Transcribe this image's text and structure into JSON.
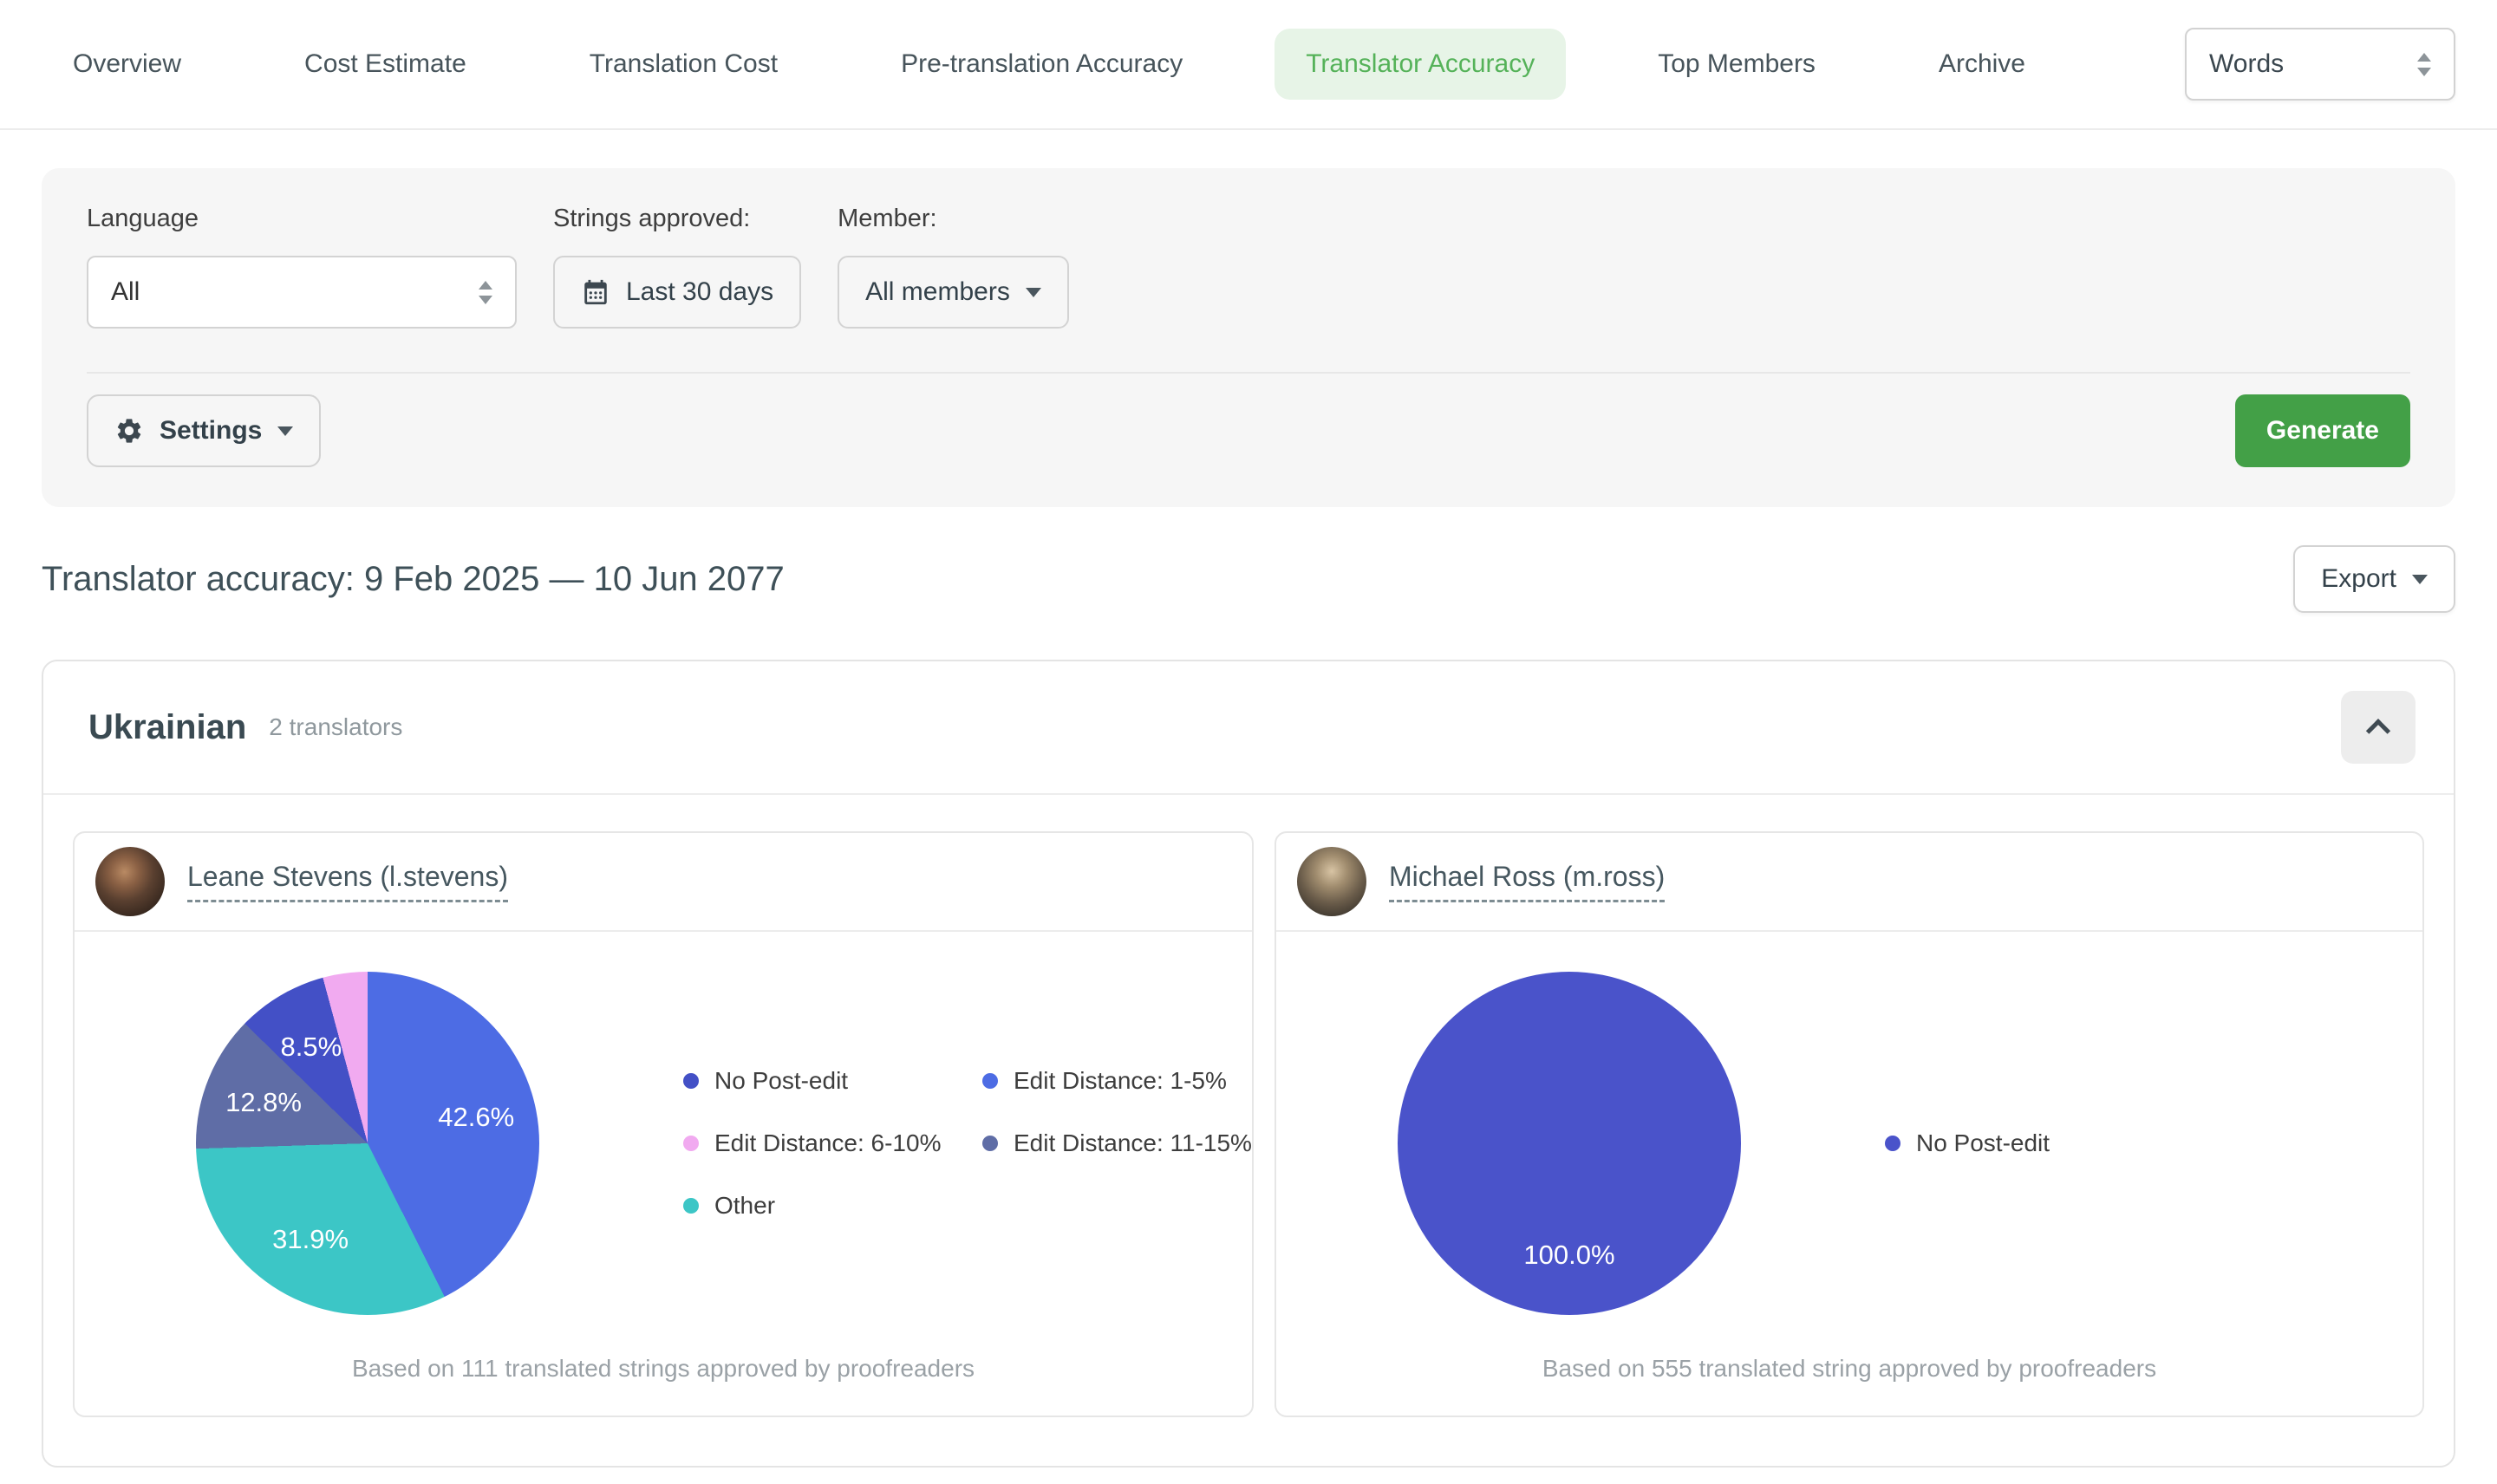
{
  "nav": {
    "tabs": [
      {
        "label": "Overview",
        "active": false
      },
      {
        "label": "Cost Estimate",
        "active": false
      },
      {
        "label": "Translation Cost",
        "active": false
      },
      {
        "label": "Pre-translation Accuracy",
        "active": false
      },
      {
        "label": "Translator Accuracy",
        "active": true
      },
      {
        "label": "Top Members",
        "active": false
      },
      {
        "label": "Archive",
        "active": false
      }
    ],
    "unit_select": {
      "value": "Words"
    }
  },
  "filters": {
    "language": {
      "label": "Language",
      "value": "All"
    },
    "strings_approved": {
      "label": "Strings approved:",
      "value": "Last 30 days"
    },
    "member": {
      "label": "Member:",
      "value": "All members"
    },
    "settings_label": "Settings",
    "generate_label": "Generate"
  },
  "report": {
    "title": "Translator accuracy: 9 Feb 2025 — 10 Jun 2077",
    "export_label": "Export"
  },
  "section": {
    "language": "Ukrainian",
    "translators_count": "2 translators"
  },
  "colors": {
    "accent_green": "#43a047",
    "active_tab_bg": "#e7f4e7",
    "active_tab_text": "#55b259"
  },
  "chart_data": [
    {
      "type": "pie",
      "title": "Leane Stevens (l.stevens)",
      "caption": "Based on 111 translated strings approved by proofreaders",
      "slices": [
        {
          "label": "Edit Distance: 1-5%",
          "value": 42.6,
          "color": "#4d6ce4",
          "data_label": "42.6%"
        },
        {
          "label": "Other",
          "value": 31.9,
          "color": "#3cc6c6",
          "data_label": "31.9%"
        },
        {
          "label": "Edit Distance: 11-15%",
          "value": 12.8,
          "color": "#5f6da6",
          "data_label": "12.8%"
        },
        {
          "label": "No Post-edit",
          "value": 8.5,
          "color": "#4350c6",
          "data_label": "8.5%"
        },
        {
          "label": "Edit Distance: 6-10%",
          "value": 4.2,
          "color": "#f1aaf0",
          "data_label": null
        }
      ],
      "legend": [
        {
          "label": "No Post-edit",
          "color": "#4350c6"
        },
        {
          "label": "Edit Distance: 1-5%",
          "color": "#4d6ce4"
        },
        {
          "label": "Edit Distance: 6-10%",
          "color": "#f1aaf0"
        },
        {
          "label": "Edit Distance: 11-15%",
          "color": "#5f6da6"
        },
        {
          "label": "Other",
          "color": "#3cc6c6"
        }
      ]
    },
    {
      "type": "pie",
      "title": "Michael Ross (m.ross)",
      "caption": "Based on 555 translated string approved by proofreaders",
      "slices": [
        {
          "label": "No Post-edit",
          "value": 100.0,
          "color": "#4a53ca",
          "data_label": "100.0%"
        }
      ],
      "legend": [
        {
          "label": "No Post-edit",
          "color": "#4a53ca"
        }
      ]
    }
  ]
}
